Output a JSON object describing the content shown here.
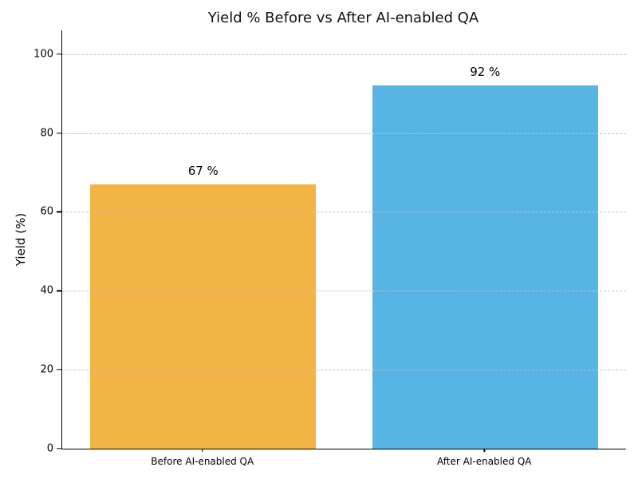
{
  "chart_data": {
    "type": "bar",
    "title": "Yield % Before vs After AI-enabled QA",
    "xlabel": "",
    "ylabel": "Yield (%)",
    "categories": [
      "Before AI-enabled QA",
      "After AI-enabled QA"
    ],
    "values": [
      67,
      92
    ],
    "value_labels": [
      "67 %",
      "92 %"
    ],
    "bar_colors": [
      "#f2b444",
      "#57b4e4"
    ],
    "yticks": [
      0,
      20,
      40,
      60,
      80,
      100
    ],
    "ylim": [
      0,
      106
    ],
    "bar_width_fraction": 0.8,
    "grid": "horizontal-dashed-on-top",
    "gridline_color": "#c3c3c3",
    "legend": "none",
    "background_color": "#ffffff"
  }
}
